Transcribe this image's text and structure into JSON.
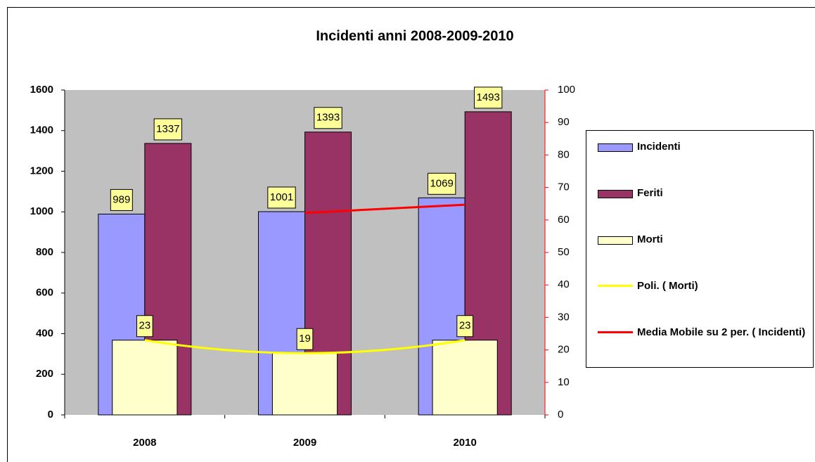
{
  "chart_data": {
    "type": "bar",
    "title": "Incidenti anni 2008-2009-2010",
    "categories": [
      "2008",
      "2009",
      "2010"
    ],
    "series": [
      {
        "name": "Incidenti",
        "type": "bar",
        "color": "#9999ff",
        "values": [
          989,
          1001,
          1069
        ]
      },
      {
        "name": "Feriti",
        "type": "bar",
        "color": "#993366",
        "values": [
          1337,
          1393,
          1493
        ]
      },
      {
        "name": "Morti",
        "type": "bar",
        "color": "#ffffcc",
        "axis": "y2",
        "values": [
          23,
          19,
          23
        ]
      },
      {
        "name": "Poli. ( Morti)",
        "type": "line",
        "curve": "polynomial",
        "color": "#ffff00",
        "axis": "y2",
        "values": [
          23,
          19,
          23
        ]
      },
      {
        "name": "Media Mobile su 2 per. ( Incidenti)",
        "type": "line",
        "color": "#ff0000",
        "values": [
          null,
          995,
          1035
        ]
      }
    ],
    "ylim": [
      0,
      1600
    ],
    "yticks": [
      0,
      200,
      400,
      600,
      800,
      1000,
      1200,
      1400,
      1600
    ],
    "y2lim": [
      0,
      100
    ],
    "y2ticks": [
      0,
      10,
      20,
      30,
      40,
      50,
      60,
      70,
      80,
      90,
      100
    ],
    "grid": false,
    "legend": "right"
  }
}
